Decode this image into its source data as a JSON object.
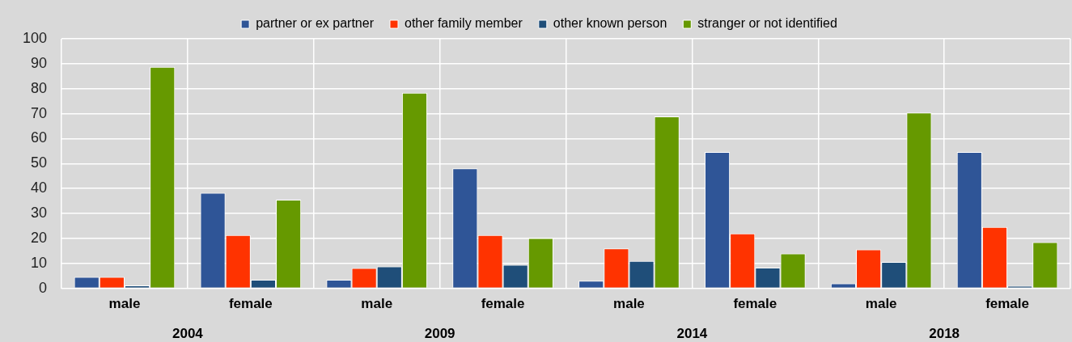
{
  "chart_data": {
    "type": "bar",
    "categories": [
      "male",
      "female",
      "male",
      "female",
      "male",
      "female",
      "male",
      "female"
    ],
    "series": [
      {
        "name": "partner or ex partner",
        "color": "#2f5597",
        "values": [
          4.6,
          38.3,
          3.4,
          48.1,
          3.0,
          54.6,
          2.0,
          54.6
        ]
      },
      {
        "name": "other family member",
        "color": "#ff3300",
        "values": [
          4.6,
          21.3,
          8.1,
          21.3,
          16.0,
          22.0,
          15.6,
          24.6
        ]
      },
      {
        "name": "other known person",
        "color": "#1f4e79",
        "values": [
          1.2,
          3.4,
          8.8,
          9.4,
          11.0,
          8.3,
          10.6,
          1.0
        ]
      },
      {
        "name": "stranger or not identified",
        "color": "#669900",
        "values": [
          88.7,
          35.5,
          78.4,
          20.1,
          68.9,
          14.0,
          70.4,
          18.5
        ]
      }
    ],
    "ylim": [
      0,
      100
    ],
    "yticks": [
      0,
      10,
      20,
      30,
      40,
      50,
      60,
      70,
      80,
      90,
      100
    ],
    "grid": true,
    "legend": "top",
    "annotations": [
      "2004",
      "2009",
      "2014",
      "2018"
    ]
  }
}
